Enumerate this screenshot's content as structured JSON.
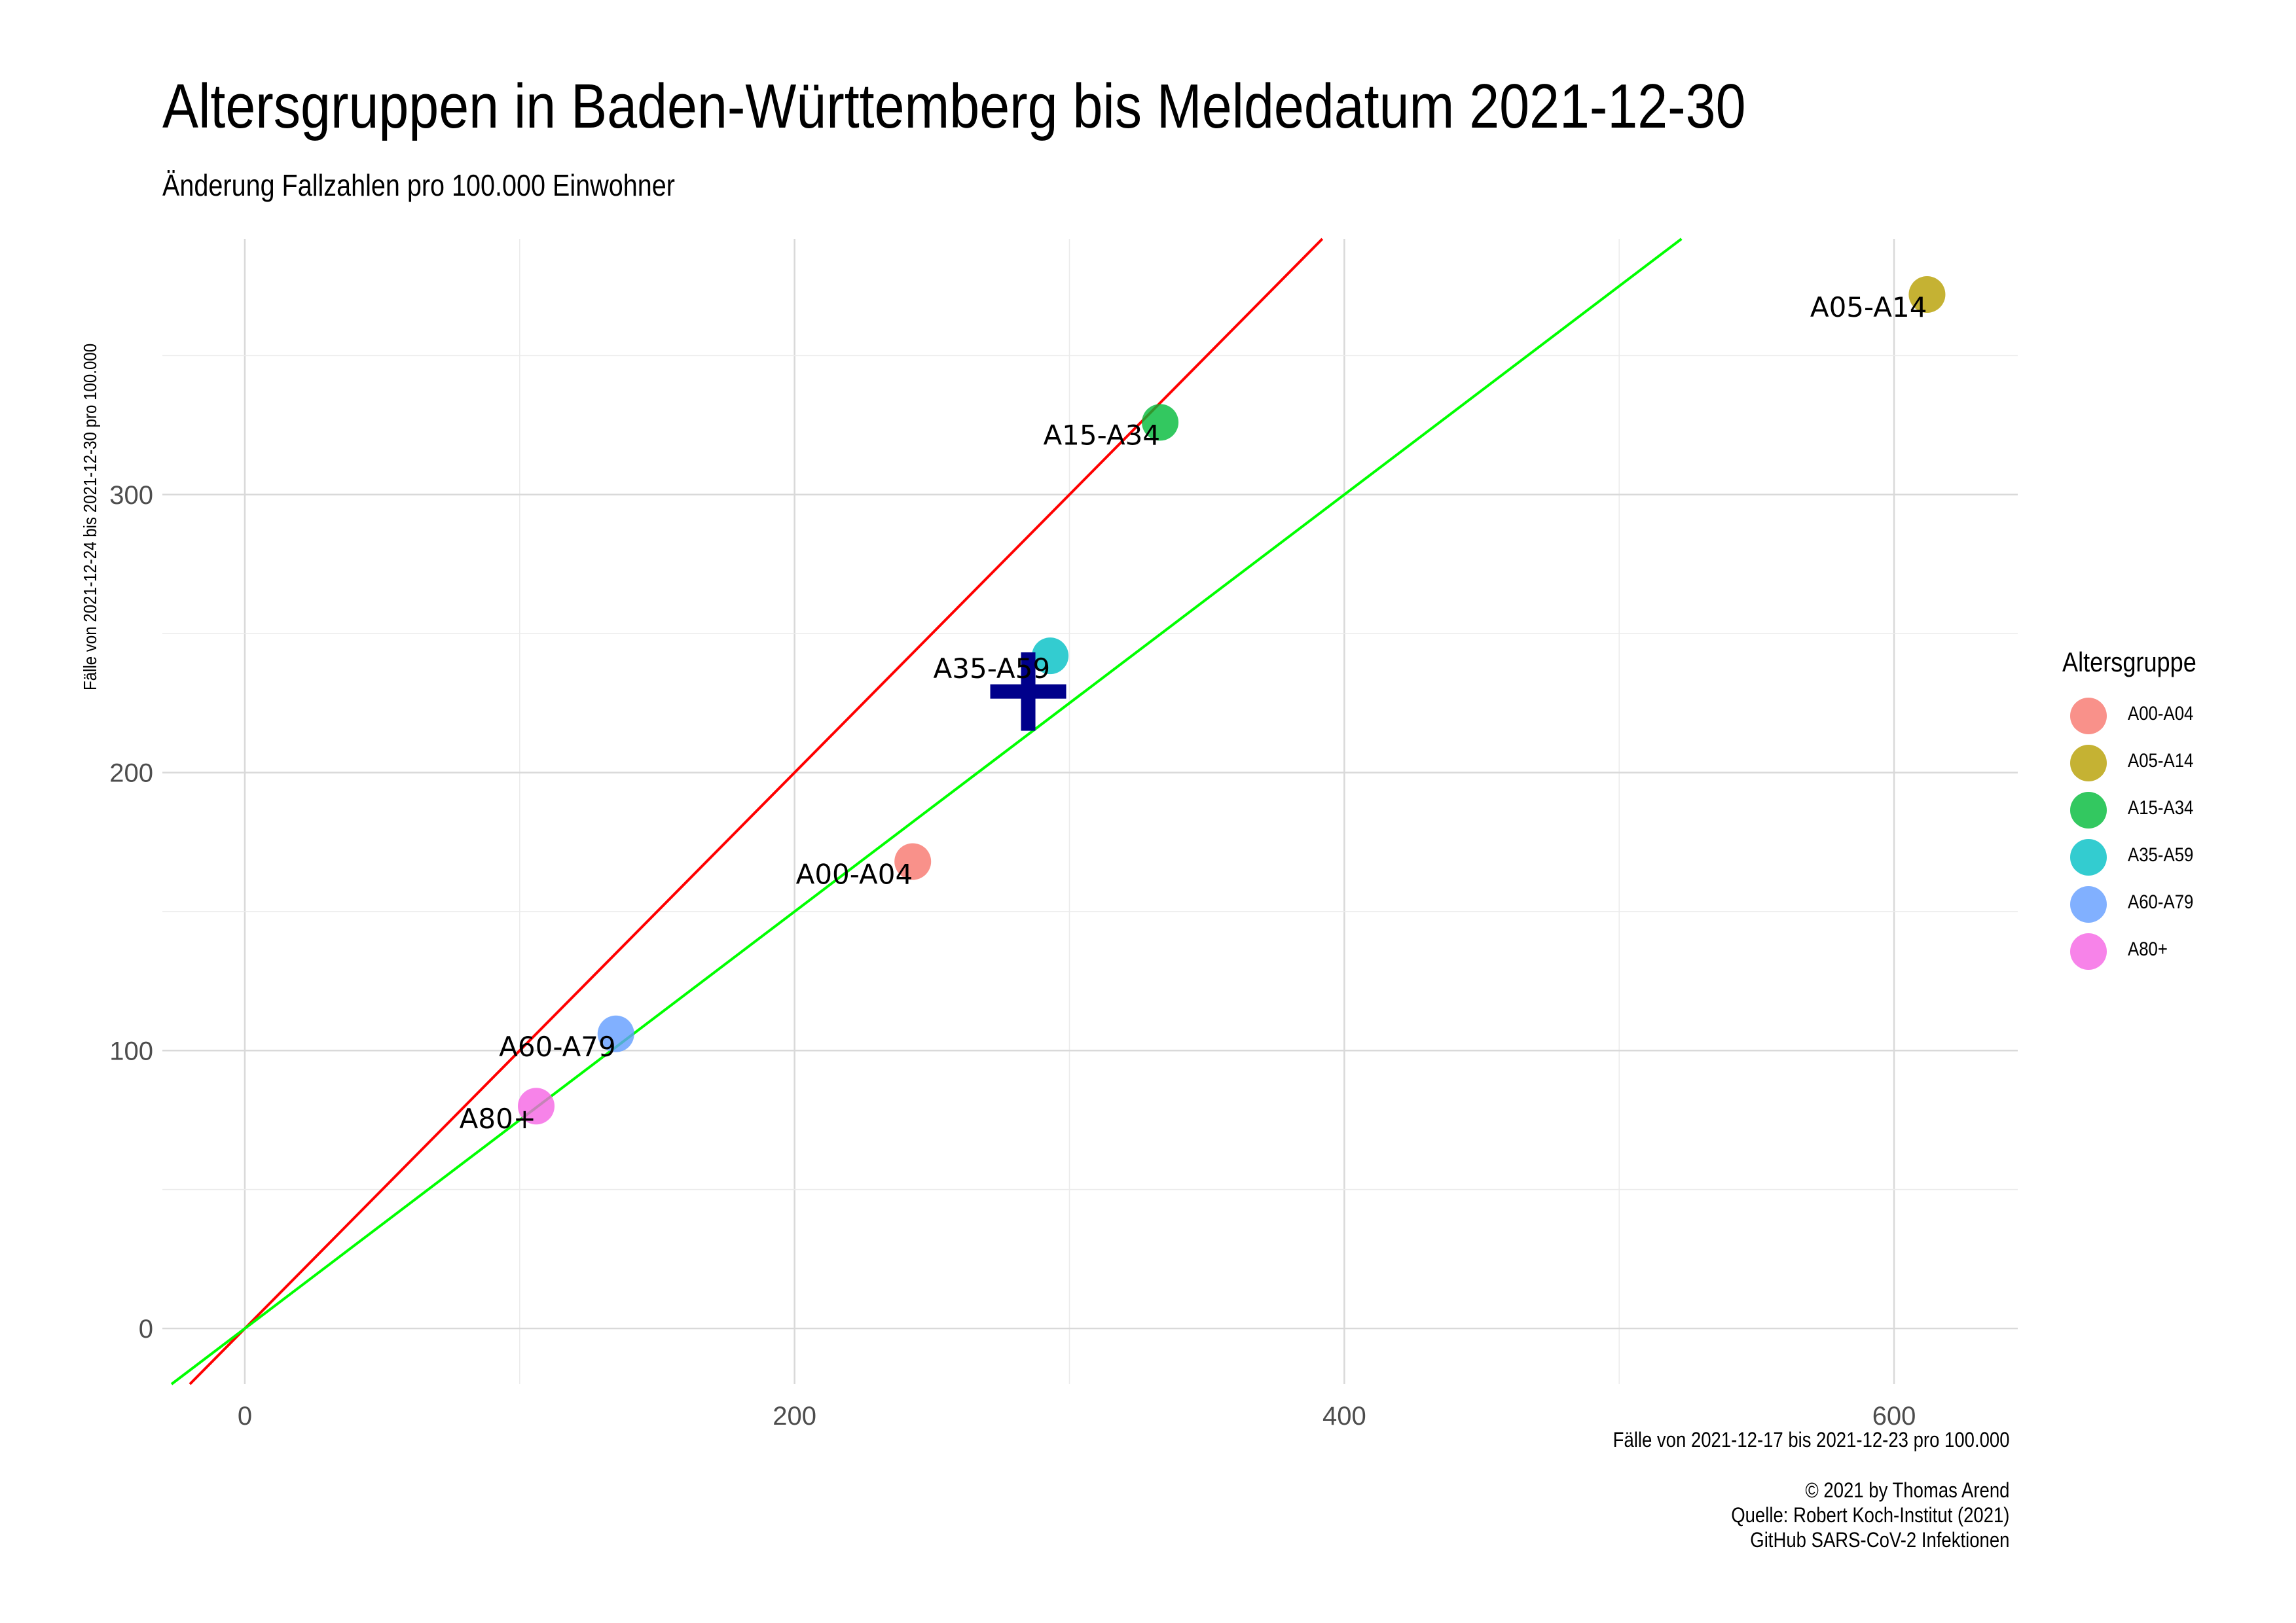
{
  "chart_data": {
    "type": "scatter",
    "title": "Altersgruppen in Baden-Württemberg bis Meldedatum 2021-12-30",
    "subtitle": "Änderung Fallzahlen pro 100.000 Einwohner",
    "xlabel": "Fälle von 2021-12-17 bis 2021-12-23 pro 100.000",
    "ylabel": "Fälle von 2021-12-24 bis 2021-12-30 pro 100.000",
    "xlim": [
      -30,
      645
    ],
    "ylim": [
      -20,
      392
    ],
    "x_ticks": [
      0,
      200,
      400,
      600
    ],
    "y_ticks": [
      0,
      100,
      200,
      300
    ],
    "grid": true,
    "legend": {
      "title": "Altersgruppe",
      "position": "right",
      "entries": [
        "A00-A04",
        "A05-A14",
        "A15-A34",
        "A35-A59",
        "A60-A79",
        "A80+"
      ]
    },
    "points": [
      {
        "label": "A00-A04",
        "x": 243,
        "y": 168,
        "color": "#F8766D"
      },
      {
        "label": "A05-A14",
        "x": 612,
        "y": 372,
        "color": "#B79F00"
      },
      {
        "label": "A15-A34",
        "x": 333,
        "y": 326,
        "color": "#00BA38"
      },
      {
        "label": "A35-A59",
        "x": 293,
        "y": 242,
        "color": "#00BFC4"
      },
      {
        "label": "A60-A79",
        "x": 135,
        "y": 106,
        "color": "#619CFF"
      },
      {
        "label": "A80+",
        "x": 106,
        "y": 80,
        "color": "#F564E3"
      }
    ],
    "lines": [
      {
        "slope": 1.0,
        "intercept": 0,
        "color": "#FF0000"
      },
      {
        "slope": 0.75,
        "intercept": 0,
        "color": "#00FF00"
      }
    ],
    "overall_marker": {
      "x": 285,
      "y": 232,
      "color": "#00008B",
      "shape": "cross"
    },
    "caption": [
      "© 2021 by Thomas Arend",
      "Quelle: Robert Koch-Institut (2021)",
      "GitHub SARS-CoV-2 Infektionen"
    ]
  }
}
